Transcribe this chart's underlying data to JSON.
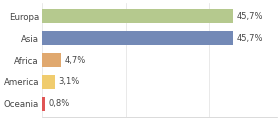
{
  "categories": [
    "Europa",
    "Asia",
    "Africa",
    "America",
    "Oceania"
  ],
  "values": [
    45.7,
    45.7,
    4.7,
    3.1,
    0.8
  ],
  "labels": [
    "45,7%",
    "45,7%",
    "4,7%",
    "3,1%",
    "0,8%"
  ],
  "bar_colors": [
    "#b5c98e",
    "#7389b6",
    "#e0a86e",
    "#f0cc6e",
    "#e05555"
  ],
  "background_color": "#ffffff",
  "xlim": [
    0,
    56
  ],
  "bar_height": 0.62,
  "label_fontsize": 6.0,
  "tick_fontsize": 6.2,
  "figwidth": 2.8,
  "figheight": 1.2,
  "dpi": 100
}
